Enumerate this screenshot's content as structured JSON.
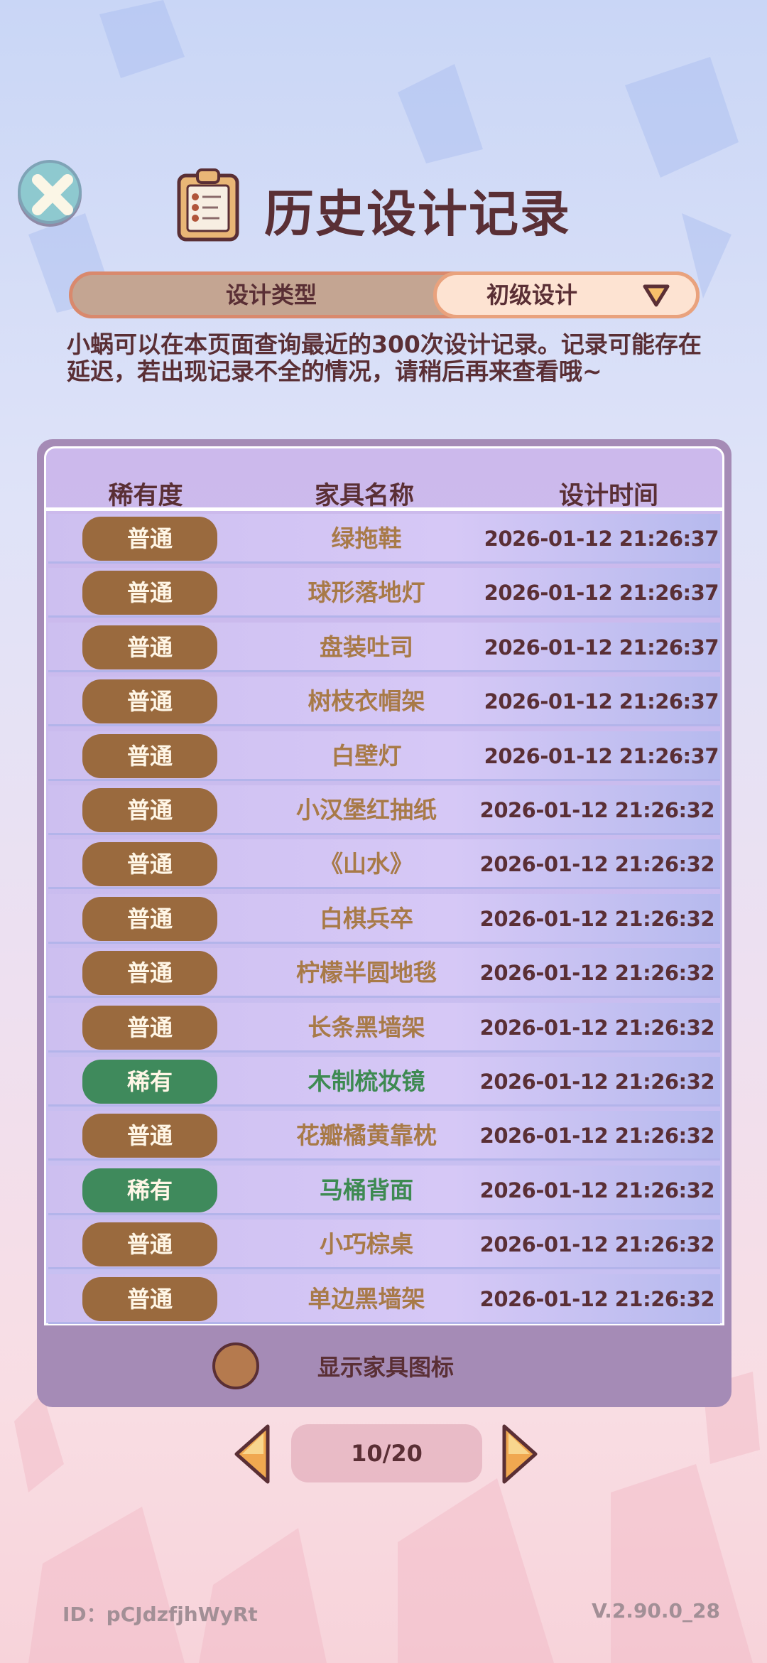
{
  "header": {
    "title": "历史设计记录"
  },
  "selector": {
    "label": "设计类型",
    "value": "初级设计"
  },
  "description": "小蜗可以在本页面查询最近的300次设计记录。记录可能存在延迟，若出现记录不全的情况，请稍后再来查看哦~",
  "table": {
    "columns": [
      "稀有度",
      "家具名称",
      "设计时间"
    ],
    "rows": [
      {
        "rarity": "普通",
        "name": "绿拖鞋",
        "time": "2026-01-12 21:26:37"
      },
      {
        "rarity": "普通",
        "name": "球形落地灯",
        "time": "2026-01-12 21:26:37"
      },
      {
        "rarity": "普通",
        "name": "盘装吐司",
        "time": "2026-01-12 21:26:37"
      },
      {
        "rarity": "普通",
        "name": "树枝衣帽架",
        "time": "2026-01-12 21:26:37"
      },
      {
        "rarity": "普通",
        "name": "白壁灯",
        "time": "2026-01-12 21:26:37"
      },
      {
        "rarity": "普通",
        "name": "小汉堡红抽纸",
        "time": "2026-01-12 21:26:32"
      },
      {
        "rarity": "普通",
        "name": "《山水》",
        "time": "2026-01-12 21:26:32"
      },
      {
        "rarity": "普通",
        "name": "白棋兵卒",
        "time": "2026-01-12 21:26:32"
      },
      {
        "rarity": "普通",
        "name": "柠檬半圆地毯",
        "time": "2026-01-12 21:26:32"
      },
      {
        "rarity": "普通",
        "name": "长条黑墙架",
        "time": "2026-01-12 21:26:32"
      },
      {
        "rarity": "稀有",
        "name": "木制梳妆镜",
        "time": "2026-01-12 21:26:32"
      },
      {
        "rarity": "普通",
        "name": "花瓣橘黄靠枕",
        "time": "2026-01-12 21:26:32"
      },
      {
        "rarity": "稀有",
        "name": "马桶背面",
        "time": "2026-01-12 21:26:32"
      },
      {
        "rarity": "普通",
        "name": "小巧棕桌",
        "time": "2026-01-12 21:26:32"
      },
      {
        "rarity": "普通",
        "name": "单边黑墙架",
        "time": "2026-01-12 21:26:32"
      }
    ]
  },
  "toggle": {
    "label": "显示家具图标",
    "checked": false
  },
  "pagination": {
    "current": "10/20"
  },
  "footer": {
    "id": "ID：pCJdzfjhWyRt",
    "version": "V.2.90.0_28"
  },
  "colors": {
    "common_badge": "#9a6a3e",
    "common_text": "#a87a48",
    "rare_badge": "#3f8a5c",
    "rare_text": "#3e8a52"
  }
}
